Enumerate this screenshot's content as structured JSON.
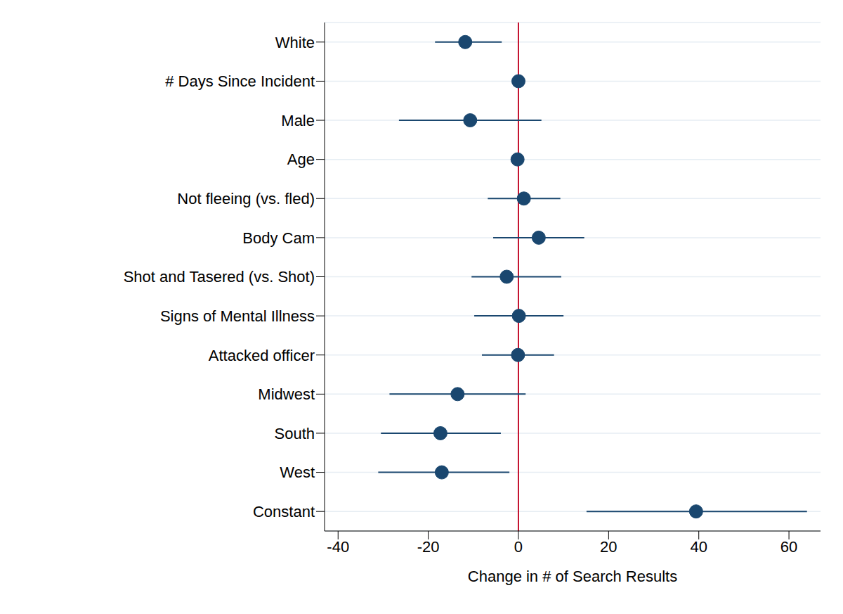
{
  "chart_data": {
    "type": "scatter",
    "orientation": "horizontal",
    "categories": [
      "White",
      "# Days Since Incident",
      "Male",
      "Age",
      "Not fleeing (vs. fled)",
      "Body Cam",
      "Shot and Tasered (vs. Shot)",
      "Signs of Mental Illness",
      "Attacked officer",
      "Midwest",
      "South",
      "West",
      "Constant"
    ],
    "values": [
      -11.8,
      0,
      -10.7,
      -0.2,
      1.2,
      4.5,
      -2.6,
      0.1,
      -0.1,
      -13.5,
      -17.3,
      -17.0,
      39.4
    ],
    "ci_low": [
      -18.5,
      -0.3,
      -26.5,
      -0.6,
      -6.8,
      -5.6,
      -10.4,
      -9.8,
      -8.1,
      -28.6,
      -30.5,
      -31.1,
      15.1
    ],
    "ci_high": [
      -3.7,
      0.3,
      5.1,
      0.2,
      9.3,
      14.6,
      9.5,
      10.0,
      7.9,
      1.6,
      -3.9,
      -2.0,
      64.0
    ],
    "xlim": [
      -43,
      67
    ],
    "xticks": [
      -40,
      -20,
      0,
      20,
      40,
      60
    ],
    "xlabel": "Change in # of Search Results",
    "reference_x": 0,
    "color": "#1a476f",
    "grid": true,
    "marker": "circle"
  }
}
